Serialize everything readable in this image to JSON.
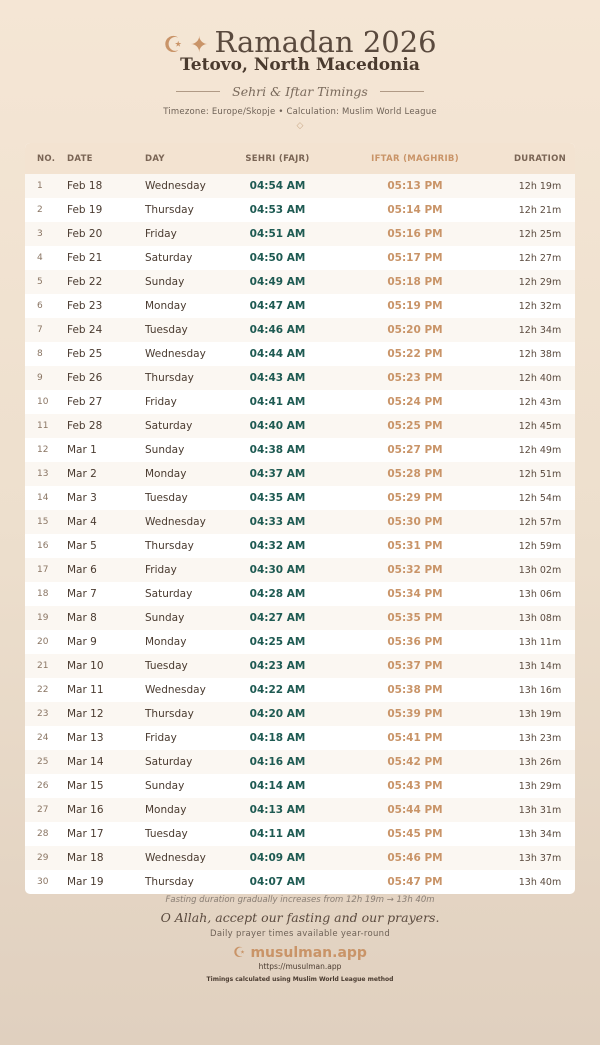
{
  "header": {
    "icons": "☪ ✦",
    "title": "Ramadan 2026",
    "location": "Tetovo, North Macedonia",
    "subtitle": "Sehri & Iftar Timings",
    "meta": "Timezone: Europe/Skopje • Calculation: Muslim World League",
    "ornament": "◇"
  },
  "table": {
    "columns": [
      "NO.",
      "DATE",
      "DAY",
      "SEHRI (FAJR)",
      "IFTAR (MAGHRIB)",
      "DURATION"
    ],
    "rows": [
      [
        "1",
        "Feb 18",
        "Wednesday",
        "04:54 AM",
        "05:13 PM",
        "12h 19m"
      ],
      [
        "2",
        "Feb 19",
        "Thursday",
        "04:53 AM",
        "05:14 PM",
        "12h 21m"
      ],
      [
        "3",
        "Feb 20",
        "Friday",
        "04:51 AM",
        "05:16 PM",
        "12h 25m"
      ],
      [
        "4",
        "Feb 21",
        "Saturday",
        "04:50 AM",
        "05:17 PM",
        "12h 27m"
      ],
      [
        "5",
        "Feb 22",
        "Sunday",
        "04:49 AM",
        "05:18 PM",
        "12h 29m"
      ],
      [
        "6",
        "Feb 23",
        "Monday",
        "04:47 AM",
        "05:19 PM",
        "12h 32m"
      ],
      [
        "7",
        "Feb 24",
        "Tuesday",
        "04:46 AM",
        "05:20 PM",
        "12h 34m"
      ],
      [
        "8",
        "Feb 25",
        "Wednesday",
        "04:44 AM",
        "05:22 PM",
        "12h 38m"
      ],
      [
        "9",
        "Feb 26",
        "Thursday",
        "04:43 AM",
        "05:23 PM",
        "12h 40m"
      ],
      [
        "10",
        "Feb 27",
        "Friday",
        "04:41 AM",
        "05:24 PM",
        "12h 43m"
      ],
      [
        "11",
        "Feb 28",
        "Saturday",
        "04:40 AM",
        "05:25 PM",
        "12h 45m"
      ],
      [
        "12",
        "Mar 1",
        "Sunday",
        "04:38 AM",
        "05:27 PM",
        "12h 49m"
      ],
      [
        "13",
        "Mar 2",
        "Monday",
        "04:37 AM",
        "05:28 PM",
        "12h 51m"
      ],
      [
        "14",
        "Mar 3",
        "Tuesday",
        "04:35 AM",
        "05:29 PM",
        "12h 54m"
      ],
      [
        "15",
        "Mar 4",
        "Wednesday",
        "04:33 AM",
        "05:30 PM",
        "12h 57m"
      ],
      [
        "16",
        "Mar 5",
        "Thursday",
        "04:32 AM",
        "05:31 PM",
        "12h 59m"
      ],
      [
        "17",
        "Mar 6",
        "Friday",
        "04:30 AM",
        "05:32 PM",
        "13h 02m"
      ],
      [
        "18",
        "Mar 7",
        "Saturday",
        "04:28 AM",
        "05:34 PM",
        "13h 06m"
      ],
      [
        "19",
        "Mar 8",
        "Sunday",
        "04:27 AM",
        "05:35 PM",
        "13h 08m"
      ],
      [
        "20",
        "Mar 9",
        "Monday",
        "04:25 AM",
        "05:36 PM",
        "13h 11m"
      ],
      [
        "21",
        "Mar 10",
        "Tuesday",
        "04:23 AM",
        "05:37 PM",
        "13h 14m"
      ],
      [
        "22",
        "Mar 11",
        "Wednesday",
        "04:22 AM",
        "05:38 PM",
        "13h 16m"
      ],
      [
        "23",
        "Mar 12",
        "Thursday",
        "04:20 AM",
        "05:39 PM",
        "13h 19m"
      ],
      [
        "24",
        "Mar 13",
        "Friday",
        "04:18 AM",
        "05:41 PM",
        "13h 23m"
      ],
      [
        "25",
        "Mar 14",
        "Saturday",
        "04:16 AM",
        "05:42 PM",
        "13h 26m"
      ],
      [
        "26",
        "Mar 15",
        "Sunday",
        "04:14 AM",
        "05:43 PM",
        "13h 29m"
      ],
      [
        "27",
        "Mar 16",
        "Monday",
        "04:13 AM",
        "05:44 PM",
        "13h 31m"
      ],
      [
        "28",
        "Mar 17",
        "Tuesday",
        "04:11 AM",
        "05:45 PM",
        "13h 34m"
      ],
      [
        "29",
        "Mar 18",
        "Wednesday",
        "04:09 AM",
        "05:46 PM",
        "13h 37m"
      ],
      [
        "30",
        "Mar 19",
        "Thursday",
        "04:07 AM",
        "05:47 PM",
        "13h 40m"
      ]
    ]
  },
  "footer": {
    "note": "Fasting duration gradually increases from 12h 19m → 13h 40m",
    "dua": "O Allah, accept our fasting and our prayers.",
    "tagline": "Daily prayer times available year-round",
    "brand": "☪ musulman.app",
    "url": "https://musulman.app",
    "method": "Timings calculated using Muslim World League method"
  },
  "colors": {
    "sehri": "#1e5a52",
    "iftar": "#c99468",
    "accent": "#c99468"
  }
}
